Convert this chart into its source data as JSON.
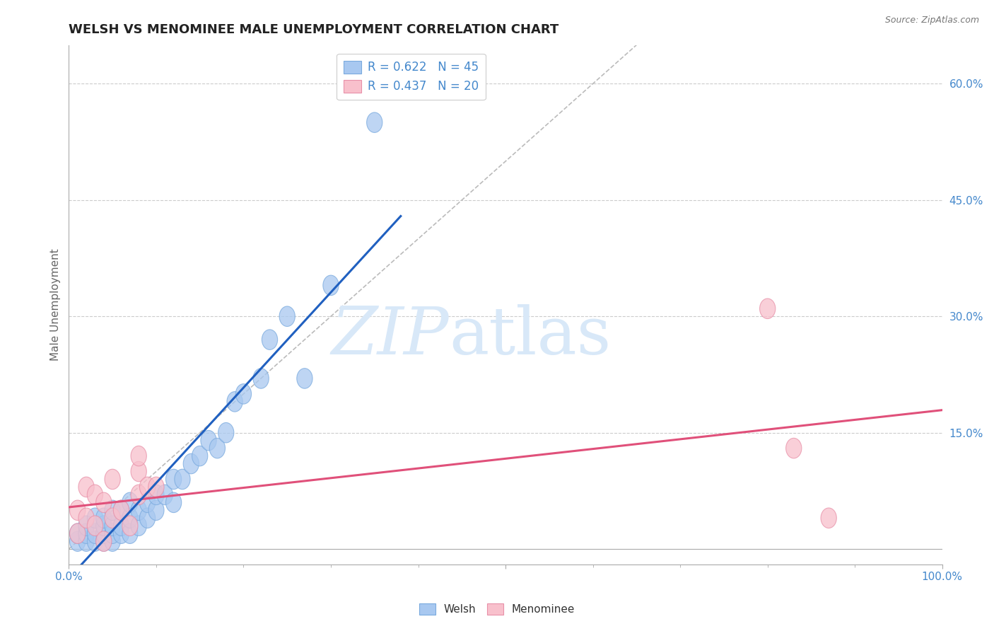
{
  "title": "WELSH VS MENOMINEE MALE UNEMPLOYMENT CORRELATION CHART",
  "source_text": "Source: ZipAtlas.com",
  "ylabel": "Male Unemployment",
  "xlim": [
    0.0,
    1.0
  ],
  "ylim": [
    -0.02,
    0.65
  ],
  "yticks_right": [
    0.0,
    0.15,
    0.3,
    0.45,
    0.6
  ],
  "yticklabels_right": [
    "",
    "15.0%",
    "30.0%",
    "45.0%",
    "60.0%"
  ],
  "welsh_R": 0.622,
  "welsh_N": 45,
  "menominee_R": 0.437,
  "menominee_N": 20,
  "welsh_color": "#A8C8F0",
  "welsh_edge_color": "#7AAADE",
  "menominee_color": "#F8C0CC",
  "menominee_edge_color": "#E890A8",
  "welsh_line_color": "#2060C0",
  "menominee_line_color": "#E0507A",
  "diagonal_color": "#BBBBBB",
  "background_color": "#FFFFFF",
  "grid_color": "#CCCCCC",
  "title_color": "#222222",
  "label_color": "#4488CC",
  "welsh_x": [
    0.01,
    0.01,
    0.02,
    0.02,
    0.02,
    0.03,
    0.03,
    0.03,
    0.04,
    0.04,
    0.04,
    0.04,
    0.05,
    0.05,
    0.05,
    0.05,
    0.06,
    0.06,
    0.06,
    0.07,
    0.07,
    0.07,
    0.08,
    0.08,
    0.09,
    0.09,
    0.1,
    0.1,
    0.11,
    0.12,
    0.12,
    0.13,
    0.14,
    0.15,
    0.16,
    0.17,
    0.18,
    0.19,
    0.2,
    0.22,
    0.23,
    0.25,
    0.27,
    0.3,
    0.35
  ],
  "welsh_y": [
    0.01,
    0.02,
    0.01,
    0.02,
    0.03,
    0.01,
    0.02,
    0.04,
    0.01,
    0.02,
    0.03,
    0.04,
    0.01,
    0.02,
    0.03,
    0.05,
    0.02,
    0.03,
    0.05,
    0.02,
    0.04,
    0.06,
    0.03,
    0.05,
    0.04,
    0.06,
    0.05,
    0.07,
    0.07,
    0.06,
    0.09,
    0.09,
    0.11,
    0.12,
    0.14,
    0.13,
    0.15,
    0.19,
    0.2,
    0.22,
    0.27,
    0.3,
    0.22,
    0.34,
    0.55
  ],
  "menominee_x": [
    0.01,
    0.01,
    0.02,
    0.02,
    0.03,
    0.03,
    0.04,
    0.04,
    0.05,
    0.05,
    0.06,
    0.07,
    0.08,
    0.08,
    0.08,
    0.09,
    0.1,
    0.8,
    0.83,
    0.87
  ],
  "menominee_y": [
    0.02,
    0.05,
    0.04,
    0.08,
    0.03,
    0.07,
    0.01,
    0.06,
    0.04,
    0.09,
    0.05,
    0.03,
    0.07,
    0.1,
    0.12,
    0.08,
    0.08,
    0.31,
    0.13,
    0.04
  ],
  "watermark_zip": "ZIP",
  "watermark_atlas": "atlas",
  "watermark_color": "#D8E8F8"
}
